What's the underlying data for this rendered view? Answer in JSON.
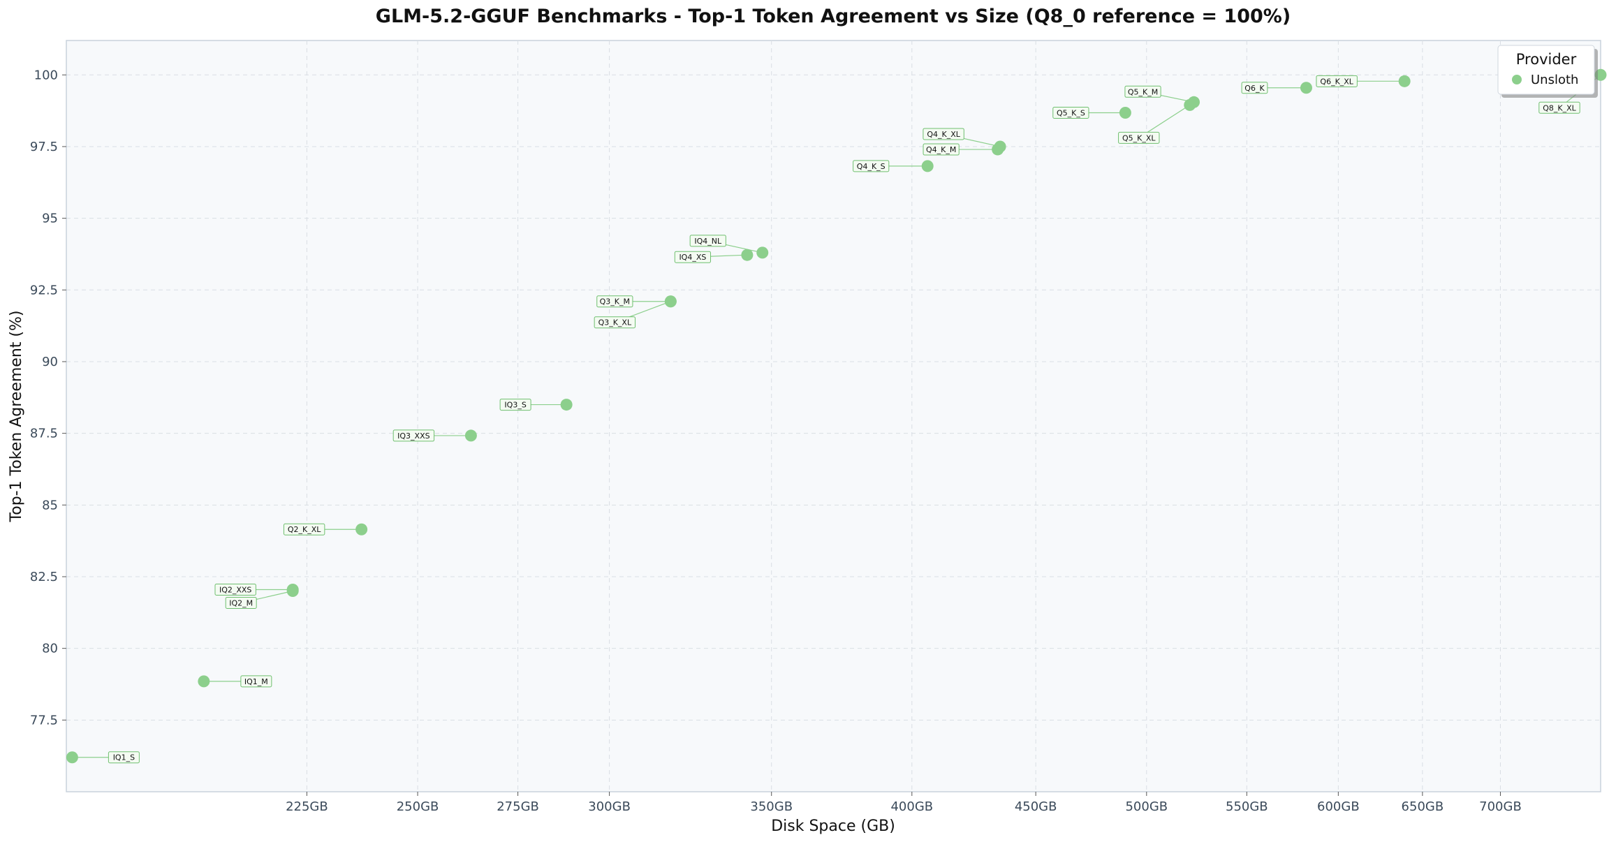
{
  "chart_data": {
    "type": "scatter",
    "title": "GLM-5.2-GGUF Benchmarks - Top-1 Token Agreement vs Size (Q8_0 reference = 100%)",
    "xlabel": "Disk Space (GB)",
    "ylabel": "Top-1 Token Agreement (%)",
    "x_scale": "log",
    "xlim": [
      179,
      770
    ],
    "ylim": [
      75.0,
      101.2
    ],
    "x_ticks": [
      225,
      250,
      275,
      300,
      350,
      400,
      450,
      500,
      550,
      600,
      650,
      700
    ],
    "x_tick_labels": [
      "225GB",
      "250GB",
      "275GB",
      "300GB",
      "350GB",
      "400GB",
      "450GB",
      "500GB",
      "550GB",
      "600GB",
      "650GB",
      "700GB"
    ],
    "y_ticks": [
      77.5,
      80,
      82.5,
      85,
      87.5,
      90,
      92.5,
      95,
      97.5,
      100
    ],
    "y_tick_labels": [
      "77.5",
      "80",
      "82.5",
      "85",
      "87.5",
      "90",
      "92.5",
      "95",
      "97.5",
      "100"
    ],
    "grid": true,
    "legend": {
      "title": "Provider",
      "placement": "top-right",
      "entries": [
        "Unsloth"
      ]
    },
    "series": [
      {
        "name": "Unsloth",
        "color": "#8ccf8c",
        "points": [
          {
            "label": "IQ1_S",
            "x": 180,
            "y": 76.2
          },
          {
            "label": "IQ1_M",
            "x": 204,
            "y": 78.85
          },
          {
            "label": "IQ2_XXS",
            "x": 222,
            "y": 82.05
          },
          {
            "label": "IQ2_M",
            "x": 222,
            "y": 82.0
          },
          {
            "label": "Q2_K_XL",
            "x": 237,
            "y": 84.15
          },
          {
            "label": "IQ3_XXS",
            "x": 263,
            "y": 87.42
          },
          {
            "label": "IQ3_S",
            "x": 288,
            "y": 88.5
          },
          {
            "label": "Q3_K_M",
            "x": 318,
            "y": 92.1
          },
          {
            "label": "Q3_K_XL",
            "x": 318,
            "y": 92.1
          },
          {
            "label": "IQ4_XS",
            "x": 342,
            "y": 93.72
          },
          {
            "label": "IQ4_NL",
            "x": 347,
            "y": 93.8
          },
          {
            "label": "Q4_K_S",
            "x": 406,
            "y": 96.82
          },
          {
            "label": "Q4_K_M",
            "x": 434,
            "y": 97.4
          },
          {
            "label": "Q4_K_XL",
            "x": 435,
            "y": 97.5
          },
          {
            "label": "Q5_K_S",
            "x": 490,
            "y": 98.68
          },
          {
            "label": "Q5_K_M",
            "x": 523,
            "y": 99.05
          },
          {
            "label": "Q5_K_XL",
            "x": 521,
            "y": 98.95
          },
          {
            "label": "Q6_K",
            "x": 582,
            "y": 99.55
          },
          {
            "label": "Q6_K_XL",
            "x": 639,
            "y": 99.78
          },
          {
            "label": "Q8_K_XL",
            "x": 770,
            "y": 100.0
          }
        ]
      }
    ]
  }
}
